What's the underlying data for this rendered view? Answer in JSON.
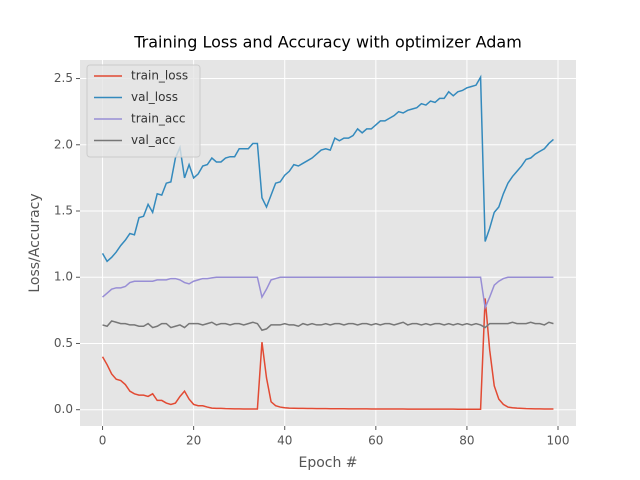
{
  "chart_data": {
    "type": "line",
    "title": "Training Loss and Accuracy with optimizer Adam",
    "xlabel": "Epoch #",
    "ylabel": "Loss/Accuracy",
    "x": [
      0,
      1,
      2,
      3,
      4,
      5,
      6,
      7,
      8,
      9,
      10,
      11,
      12,
      13,
      14,
      15,
      16,
      17,
      18,
      19,
      20,
      21,
      22,
      23,
      24,
      25,
      26,
      27,
      28,
      29,
      30,
      31,
      32,
      33,
      34,
      35,
      36,
      37,
      38,
      39,
      40,
      41,
      42,
      43,
      44,
      45,
      46,
      47,
      48,
      49,
      50,
      51,
      52,
      53,
      54,
      55,
      56,
      57,
      58,
      59,
      60,
      61,
      62,
      63,
      64,
      65,
      66,
      67,
      68,
      69,
      70,
      71,
      72,
      73,
      74,
      75,
      76,
      77,
      78,
      79,
      80,
      81,
      82,
      83,
      84,
      85,
      86,
      87,
      88,
      89,
      90,
      91,
      92,
      93,
      94,
      95,
      96,
      97,
      98,
      99
    ],
    "series": [
      {
        "name": "train_loss",
        "color": "#E24A33",
        "values": [
          0.4,
          0.34,
          0.27,
          0.23,
          0.22,
          0.19,
          0.14,
          0.12,
          0.11,
          0.11,
          0.1,
          0.12,
          0.07,
          0.07,
          0.05,
          0.04,
          0.05,
          0.1,
          0.14,
          0.08,
          0.04,
          0.03,
          0.03,
          0.02,
          0.012,
          0.01,
          0.01,
          0.008,
          0.007,
          0.006,
          0.006,
          0.005,
          0.005,
          0.005,
          0.005,
          0.51,
          0.24,
          0.06,
          0.03,
          0.02,
          0.015,
          0.012,
          0.011,
          0.01,
          0.01,
          0.009,
          0.009,
          0.008,
          0.008,
          0.008,
          0.007,
          0.007,
          0.007,
          0.007,
          0.006,
          0.006,
          0.006,
          0.006,
          0.006,
          0.005,
          0.005,
          0.005,
          0.005,
          0.005,
          0.005,
          0.005,
          0.005,
          0.004,
          0.004,
          0.004,
          0.004,
          0.004,
          0.004,
          0.004,
          0.004,
          0.004,
          0.004,
          0.004,
          0.003,
          0.003,
          0.003,
          0.003,
          0.003,
          0.003,
          0.84,
          0.45,
          0.18,
          0.08,
          0.04,
          0.02,
          0.015,
          0.012,
          0.01,
          0.008,
          0.007,
          0.006,
          0.006,
          0.005,
          0.005,
          0.005
        ]
      },
      {
        "name": "val_loss",
        "color": "#348ABD",
        "values": [
          1.18,
          1.12,
          1.15,
          1.19,
          1.24,
          1.28,
          1.33,
          1.32,
          1.45,
          1.46,
          1.55,
          1.49,
          1.63,
          1.62,
          1.71,
          1.72,
          1.9,
          1.98,
          1.75,
          1.85,
          1.75,
          1.78,
          1.84,
          1.85,
          1.9,
          1.87,
          1.87,
          1.9,
          1.91,
          1.91,
          1.97,
          1.97,
          1.97,
          2.01,
          2.01,
          1.6,
          1.53,
          1.62,
          1.71,
          1.72,
          1.77,
          1.8,
          1.85,
          1.84,
          1.86,
          1.88,
          1.9,
          1.93,
          1.96,
          1.97,
          1.96,
          2.05,
          2.03,
          2.05,
          2.05,
          2.07,
          2.12,
          2.09,
          2.12,
          2.12,
          2.15,
          2.18,
          2.18,
          2.2,
          2.22,
          2.25,
          2.24,
          2.26,
          2.27,
          2.28,
          2.31,
          2.3,
          2.33,
          2.32,
          2.35,
          2.35,
          2.4,
          2.37,
          2.4,
          2.41,
          2.43,
          2.44,
          2.45,
          2.51,
          1.27,
          1.37,
          1.49,
          1.53,
          1.63,
          1.71,
          1.76,
          1.8,
          1.84,
          1.89,
          1.9,
          1.93,
          1.95,
          1.97,
          2.01,
          2.04
        ]
      },
      {
        "name": "train_acc",
        "color": "#988ED5",
        "values": [
          0.85,
          0.88,
          0.91,
          0.92,
          0.92,
          0.93,
          0.96,
          0.97,
          0.97,
          0.97,
          0.97,
          0.97,
          0.98,
          0.98,
          0.98,
          0.99,
          0.99,
          0.98,
          0.96,
          0.95,
          0.97,
          0.98,
          0.99,
          0.99,
          0.995,
          1.0,
          1.0,
          1.0,
          1.0,
          1.0,
          1.0,
          1.0,
          1.0,
          1.0,
          1.0,
          0.85,
          0.91,
          0.98,
          0.99,
          1.0,
          1.0,
          1.0,
          1.0,
          1.0,
          1.0,
          1.0,
          1.0,
          1.0,
          1.0,
          1.0,
          1.0,
          1.0,
          1.0,
          1.0,
          1.0,
          1.0,
          1.0,
          1.0,
          1.0,
          1.0,
          1.0,
          1.0,
          1.0,
          1.0,
          1.0,
          1.0,
          1.0,
          1.0,
          1.0,
          1.0,
          1.0,
          1.0,
          1.0,
          1.0,
          1.0,
          1.0,
          1.0,
          1.0,
          1.0,
          1.0,
          1.0,
          1.0,
          1.0,
          1.0,
          0.77,
          0.85,
          0.94,
          0.97,
          0.99,
          1.0,
          1.0,
          1.0,
          1.0,
          1.0,
          1.0,
          1.0,
          1.0,
          1.0,
          1.0,
          1.0
        ]
      },
      {
        "name": "val_acc",
        "color": "#777777",
        "values": [
          0.64,
          0.63,
          0.67,
          0.66,
          0.65,
          0.65,
          0.64,
          0.64,
          0.63,
          0.63,
          0.65,
          0.62,
          0.63,
          0.65,
          0.65,
          0.62,
          0.63,
          0.64,
          0.62,
          0.65,
          0.65,
          0.65,
          0.64,
          0.65,
          0.66,
          0.64,
          0.65,
          0.65,
          0.64,
          0.65,
          0.65,
          0.64,
          0.65,
          0.66,
          0.65,
          0.6,
          0.61,
          0.64,
          0.64,
          0.64,
          0.65,
          0.64,
          0.64,
          0.63,
          0.65,
          0.64,
          0.65,
          0.64,
          0.64,
          0.65,
          0.64,
          0.65,
          0.65,
          0.64,
          0.65,
          0.65,
          0.64,
          0.65,
          0.65,
          0.64,
          0.65,
          0.64,
          0.65,
          0.65,
          0.64,
          0.65,
          0.66,
          0.64,
          0.65,
          0.65,
          0.64,
          0.65,
          0.64,
          0.65,
          0.65,
          0.64,
          0.65,
          0.64,
          0.65,
          0.64,
          0.65,
          0.64,
          0.65,
          0.64,
          0.62,
          0.65,
          0.65,
          0.65,
          0.65,
          0.65,
          0.66,
          0.65,
          0.65,
          0.65,
          0.66,
          0.65,
          0.65,
          0.64,
          0.66,
          0.65
        ]
      }
    ],
    "xlim": [
      -4.95,
      103.95
    ],
    "ylim": [
      -0.123,
      2.64
    ],
    "xticks": [
      0,
      20,
      40,
      60,
      80,
      100
    ],
    "yticks": [
      {
        "value": 0,
        "label": "0.0"
      },
      0.5,
      {
        "value": 1,
        "label": "1.0"
      },
      1.5,
      {
        "value": 2,
        "label": "2.0"
      },
      2.5
    ],
    "grid": true,
    "legend": "upper left"
  }
}
